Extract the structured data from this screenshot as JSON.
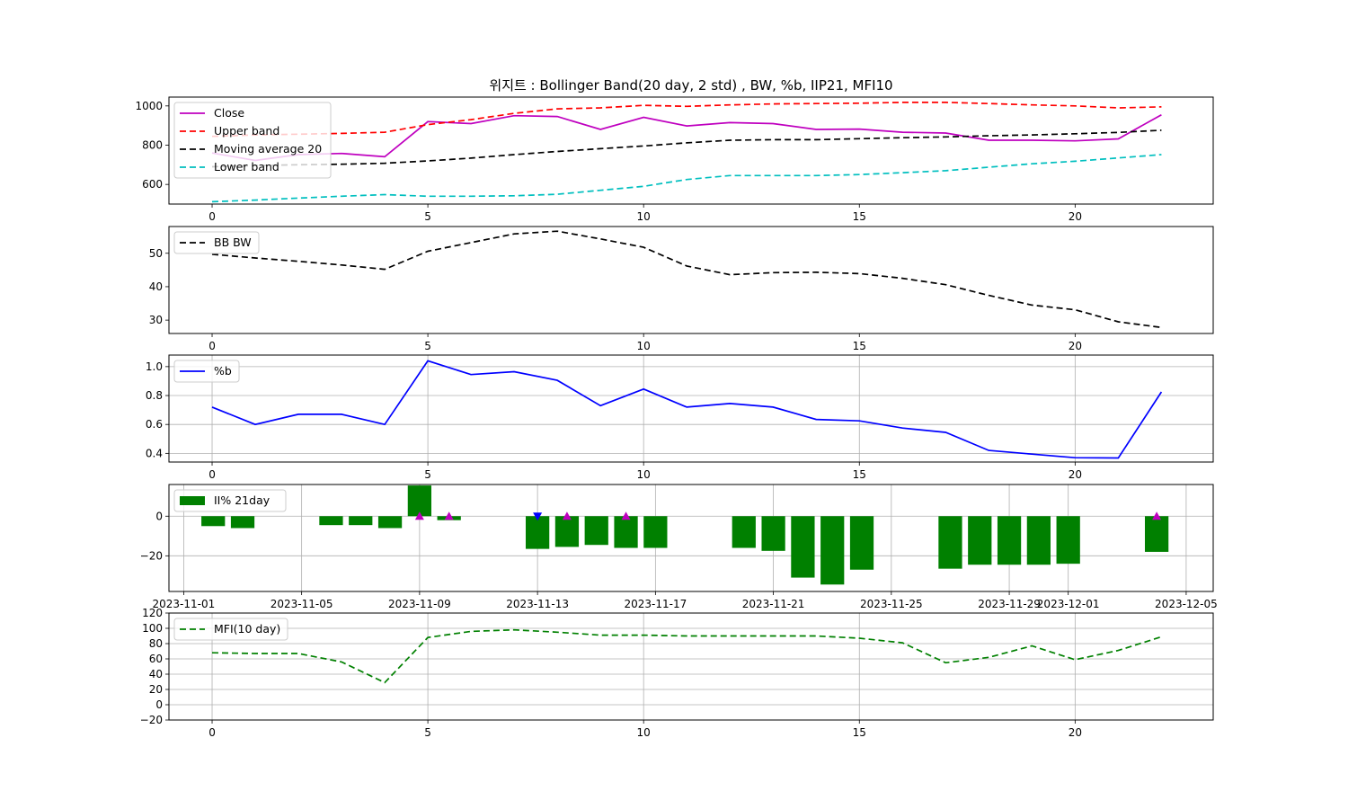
{
  "figure": {
    "title": "위지트 : Bollinger Band(20 day, 2 std) , BW, %b, IIP21, MFI10"
  },
  "chart_data": [
    {
      "id": "price",
      "type": "line",
      "x": [
        0,
        1,
        2,
        3,
        4,
        5,
        6,
        7,
        8,
        9,
        10,
        11,
        12,
        13,
        14,
        15,
        16,
        17,
        18,
        19,
        20,
        21,
        22
      ],
      "xlim": [
        -1,
        23.2
      ],
      "ylim": [
        500,
        1045
      ],
      "xticks": [
        "0",
        "5",
        "10",
        "15",
        "20"
      ],
      "xtick_values": [
        0,
        5,
        10,
        15,
        20
      ],
      "yticks": [
        "600",
        "800",
        "1000"
      ],
      "ytick_values": [
        600,
        800,
        1000
      ],
      "grid": false,
      "legend_position": "upper-left",
      "series": [
        {
          "name": "Close",
          "color": "#bf00bf",
          "dash": "solid",
          "values": [
            760,
            722,
            752,
            758,
            741,
            920,
            910,
            950,
            946,
            880,
            942,
            898,
            915,
            910,
            880,
            882,
            866,
            862,
            825,
            825,
            822,
            832,
            955
          ]
        },
        {
          "name": "Upper band",
          "color": "#ff0000",
          "dash": "dashed",
          "values": [
            845,
            852,
            856,
            860,
            866,
            905,
            930,
            962,
            985,
            990,
            1003,
            998,
            1005,
            1010,
            1012,
            1014,
            1018,
            1018,
            1012,
            1005,
            1000,
            990,
            995
          ]
        },
        {
          "name": "Moving average 20",
          "color": "#000000",
          "dash": "dashed",
          "values": [
            690,
            696,
            700,
            703,
            708,
            720,
            734,
            752,
            768,
            782,
            796,
            812,
            825,
            828,
            828,
            833,
            838,
            842,
            848,
            852,
            858,
            865,
            876
          ]
        },
        {
          "name": "Lower band",
          "color": "#00bfbf",
          "dash": "dashed",
          "values": [
            512,
            520,
            530,
            540,
            548,
            540,
            540,
            542,
            550,
            570,
            590,
            625,
            645,
            645,
            645,
            650,
            660,
            670,
            688,
            705,
            718,
            735,
            752
          ]
        }
      ]
    },
    {
      "id": "bw",
      "type": "line",
      "x": [
        0,
        1,
        2,
        3,
        4,
        5,
        6,
        7,
        8,
        9,
        10,
        11,
        12,
        13,
        14,
        15,
        16,
        17,
        18,
        19,
        20,
        21,
        22
      ],
      "xlim": [
        -1,
        23.2
      ],
      "ylim": [
        26,
        58
      ],
      "xticks": [
        "0",
        "5",
        "10",
        "15",
        "20"
      ],
      "xtick_values": [
        0,
        5,
        10,
        15,
        20
      ],
      "yticks": [
        "30",
        "40",
        "50"
      ],
      "ytick_values": [
        30,
        40,
        50
      ],
      "grid": false,
      "legend_position": "upper-left",
      "series": [
        {
          "name": "BB BW",
          "color": "#000000",
          "dash": "dashed",
          "values": [
            49.7,
            48.6,
            47.6,
            46.5,
            45.2,
            50.6,
            53.2,
            55.8,
            56.6,
            54.3,
            51.8,
            46.2,
            43.6,
            44.2,
            44.3,
            43.9,
            42.5,
            40.6,
            37.4,
            34.5,
            33.1,
            29.5,
            27.8
          ]
        }
      ]
    },
    {
      "id": "pctb",
      "type": "line",
      "x": [
        0,
        1,
        2,
        3,
        4,
        5,
        6,
        7,
        8,
        9,
        10,
        11,
        12,
        13,
        14,
        15,
        16,
        17,
        18,
        19,
        20,
        21,
        22
      ],
      "xlim": [
        -1,
        23.2
      ],
      "ylim": [
        0.34,
        1.08
      ],
      "xticks": [
        "0",
        "5",
        "10",
        "15",
        "20"
      ],
      "xtick_values": [
        0,
        5,
        10,
        15,
        20
      ],
      "yticks": [
        "0.4",
        "0.6",
        "0.8",
        "1.0"
      ],
      "ytick_values": [
        0.4,
        0.6,
        0.8,
        1.0
      ],
      "grid": true,
      "legend_position": "upper-left",
      "series": [
        {
          "name": "%b",
          "color": "#0000ff",
          "dash": "solid",
          "values": [
            0.72,
            0.6,
            0.67,
            0.67,
            0.6,
            1.04,
            0.945,
            0.965,
            0.905,
            0.73,
            0.845,
            0.72,
            0.745,
            0.72,
            0.635,
            0.625,
            0.575,
            0.545,
            0.42,
            0.395,
            0.37,
            0.368,
            0.825
          ]
        }
      ]
    },
    {
      "id": "iip",
      "type": "bar",
      "x_type": "date",
      "xlim": [
        "2023-10-31T12:00",
        "2023-12-05T22:00"
      ],
      "ylim": [
        -38,
        16
      ],
      "xticks": [
        "2023-11-01",
        "2023-11-05",
        "2023-11-09",
        "2023-11-13",
        "2023-11-17",
        "2023-11-21",
        "2023-11-25",
        "2023-11-29",
        "2023-12-01",
        "2023-12-05"
      ],
      "yticks": [
        "0",
        "−20"
      ],
      "ytick_values": [
        0,
        -20
      ],
      "grid": true,
      "legend_position": "upper-left",
      "series": [
        {
          "name": "II% 21day",
          "color": "#008000",
          "dates": [
            "2023-11-02",
            "2023-11-03",
            "2023-11-06",
            "2023-11-07",
            "2023-11-08",
            "2023-11-09",
            "2023-11-10",
            "2023-11-13",
            "2023-11-14",
            "2023-11-15",
            "2023-11-16",
            "2023-11-17",
            "2023-11-20",
            "2023-11-21",
            "2023-11-22",
            "2023-11-23",
            "2023-11-24",
            "2023-11-27",
            "2023-11-28",
            "2023-11-29",
            "2023-11-30",
            "2023-12-01",
            "2023-12-04"
          ],
          "values": [
            -5,
            -6,
            -4.5,
            -4.5,
            -6,
            15.5,
            -2,
            -16.5,
            -15.5,
            -14.5,
            -16,
            -16,
            -16,
            -17.5,
            -31,
            -34.5,
            -27,
            -26.5,
            -24.5,
            -24.5,
            -24.5,
            -24,
            -18
          ]
        }
      ],
      "markers": [
        {
          "date": "2023-11-09",
          "value": 0,
          "shape": "triangle-up",
          "color": "#bf00bf"
        },
        {
          "date": "2023-11-10",
          "value": 0,
          "shape": "triangle-up",
          "color": "#bf00bf"
        },
        {
          "date": "2023-11-13",
          "value": 0,
          "shape": "triangle-down",
          "color": "#0000ff"
        },
        {
          "date": "2023-11-14",
          "value": 0,
          "shape": "triangle-up",
          "color": "#bf00bf"
        },
        {
          "date": "2023-11-16",
          "value": 0,
          "shape": "triangle-up",
          "color": "#bf00bf"
        },
        {
          "date": "2023-12-04",
          "value": 0,
          "shape": "triangle-up",
          "color": "#bf00bf"
        }
      ]
    },
    {
      "id": "mfi",
      "type": "line",
      "x": [
        0,
        1,
        2,
        3,
        4,
        5,
        6,
        7,
        8,
        9,
        10,
        11,
        12,
        13,
        14,
        15,
        16,
        17,
        18,
        19,
        20,
        21,
        22
      ],
      "xlim": [
        -1,
        23.2
      ],
      "ylim": [
        -20,
        120
      ],
      "xticks": [
        "0",
        "5",
        "10",
        "15",
        "20"
      ],
      "xtick_values": [
        0,
        5,
        10,
        15,
        20
      ],
      "yticks": [
        "−20",
        "0",
        "20",
        "40",
        "60",
        "80",
        "100",
        "120"
      ],
      "ytick_values": [
        -20,
        0,
        20,
        40,
        60,
        80,
        100,
        120
      ],
      "grid": true,
      "legend_position": "upper-left",
      "series": [
        {
          "name": "MFI(10 day)",
          "color": "#008000",
          "dash": "dashed",
          "values": [
            68,
            67,
            67,
            56,
            29,
            88,
            96,
            98,
            95,
            91,
            91,
            90,
            90,
            90,
            90,
            87,
            81,
            55,
            62,
            77,
            59,
            71,
            89
          ]
        }
      ]
    }
  ]
}
